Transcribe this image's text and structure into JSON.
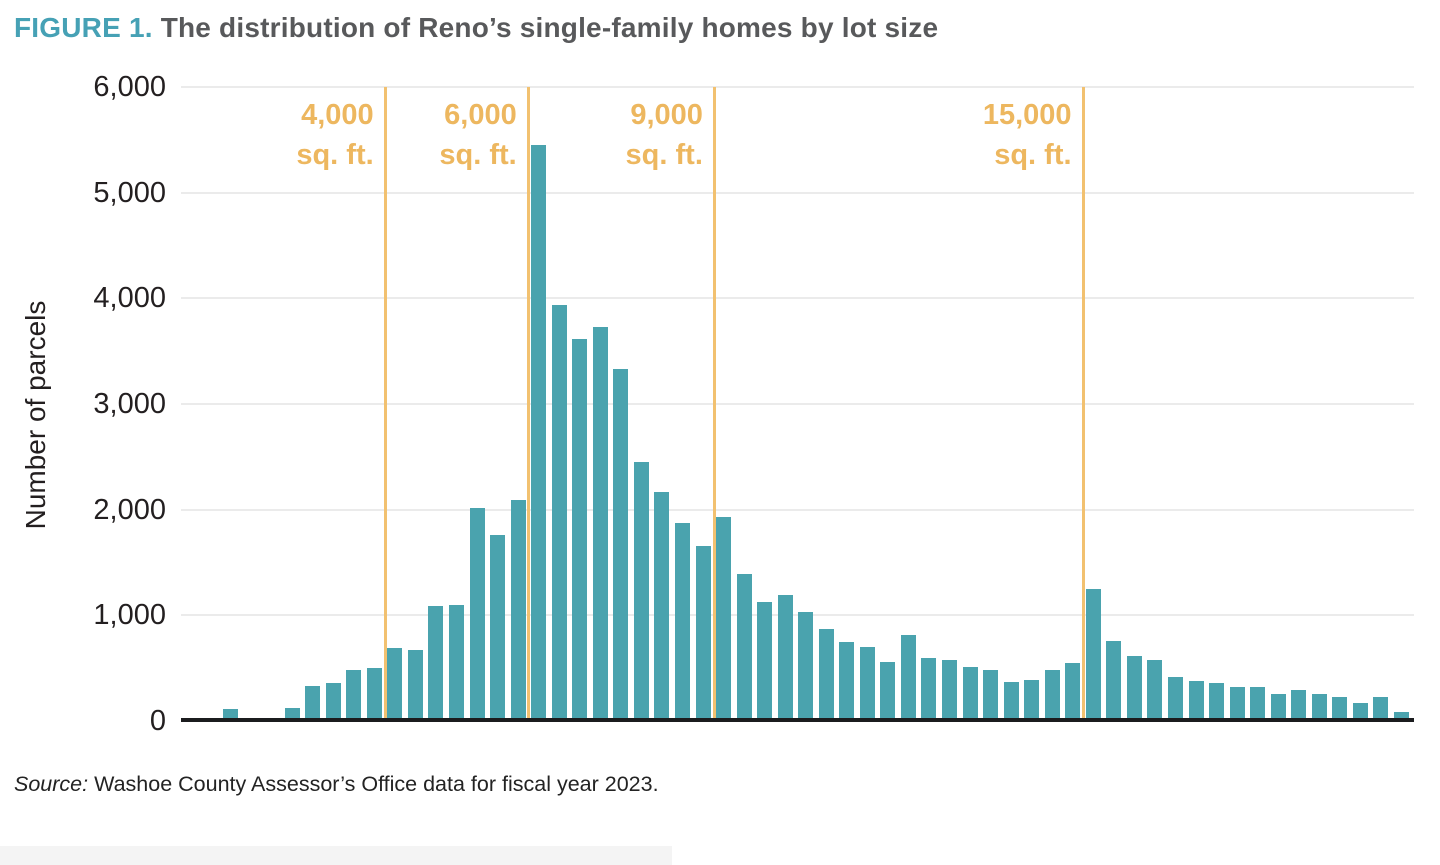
{
  "figure": {
    "label": "FIGURE 1.",
    "title": "The distribution of Reno’s single-family homes by lot size"
  },
  "chart_data": {
    "type": "bar",
    "title": "The distribution of Reno’s single-family homes by lot size",
    "xlabel": "",
    "ylabel": "Number of parcels",
    "ylim": [
      0,
      6000
    ],
    "grid": true,
    "legend": false,
    "yticks": [
      0,
      1000,
      2000,
      3000,
      4000,
      5000,
      6000
    ],
    "ytick_labels": [
      "0",
      "1,000",
      "2,000",
      "3,000",
      "4,000",
      "5,000",
      "6,000"
    ],
    "bar_color": "#4AA3AE",
    "reference_color": "#F2C170",
    "reference_label_color": "#EDB75F",
    "values": [
      110,
      0,
      30,
      125,
      330,
      360,
      480,
      500,
      690,
      670,
      1090,
      1100,
      2020,
      1760,
      2090,
      5450,
      3940,
      3620,
      3730,
      3330,
      2450,
      2170,
      1870,
      1660,
      1930,
      1390,
      1130,
      1190,
      1030,
      870,
      750,
      700,
      560,
      810,
      600,
      580,
      515,
      480,
      370,
      390,
      480,
      545,
      1250,
      760,
      615,
      580,
      420,
      380,
      360,
      320,
      325,
      260,
      290,
      260,
      230,
      175,
      230,
      90
    ],
    "reference_lines": [
      {
        "label": "4,000",
        "sublabel": "sq. ft.",
        "x_fraction": 0.166
      },
      {
        "label": "6,000",
        "sublabel": "sq. ft.",
        "x_fraction": 0.282
      },
      {
        "label": "9,000",
        "sublabel": "sq. ft.",
        "x_fraction": 0.433
      },
      {
        "label": "15,000",
        "sublabel": "sq. ft.",
        "x_fraction": 0.732
      }
    ]
  },
  "source": {
    "prefix": "Source:",
    "rest": " Washoe County Assessor’s Office data for fiscal year 2023."
  }
}
